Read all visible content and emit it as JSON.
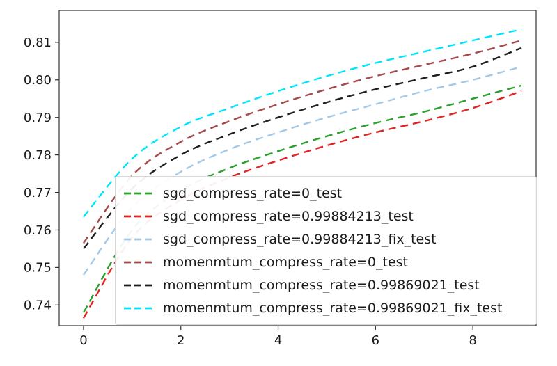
{
  "figure": {
    "background": "#ffffff",
    "text_color": "#1a1a1a"
  },
  "chart_data": {
    "type": "line",
    "title": "",
    "xlabel": "",
    "ylabel": "",
    "grid": false,
    "legend_position": "lower-left-inside",
    "x": [
      0,
      1,
      2,
      3,
      4,
      5,
      6,
      7,
      8,
      9
    ],
    "xlim": [
      -0.5,
      9.3
    ],
    "ylim": [
      0.7345,
      0.8185
    ],
    "xticks": [
      0,
      2,
      4,
      6,
      8
    ],
    "xtick_labels": [
      "0",
      "2",
      "4",
      "6",
      "8"
    ],
    "yticks": [
      0.74,
      0.75,
      0.76,
      0.77,
      0.78,
      0.79,
      0.8,
      0.81
    ],
    "ytick_labels": [
      "0.74",
      "0.75",
      "0.76",
      "0.77",
      "0.78",
      "0.79",
      "0.80",
      "0.81"
    ],
    "series": [
      {
        "name": "sgd_compress_rate=0_test",
        "color": "#2ca02c",
        "linestyle": "dashed",
        "values": [
          0.738,
          0.76,
          0.7705,
          0.7765,
          0.781,
          0.785,
          0.7885,
          0.7915,
          0.795,
          0.7985
        ]
      },
      {
        "name": "sgd_compress_rate=0.99884213_test",
        "color": "#e02424",
        "linestyle": "dashed",
        "values": [
          0.7365,
          0.758,
          0.768,
          0.774,
          0.7785,
          0.7825,
          0.786,
          0.789,
          0.7925,
          0.797
        ]
      },
      {
        "name": "sgd_compress_rate=0.99884213_fix_test",
        "color": "#a3c9e8",
        "linestyle": "dashed",
        "values": [
          0.748,
          0.766,
          0.7755,
          0.7815,
          0.786,
          0.79,
          0.7935,
          0.797,
          0.8,
          0.8035
        ]
      },
      {
        "name": "momenmtum_compress_rate=0_test",
        "color": "#a54a4a",
        "linestyle": "dashed",
        "values": [
          0.7565,
          0.7745,
          0.7835,
          0.789,
          0.7935,
          0.7975,
          0.801,
          0.804,
          0.807,
          0.8105
        ]
      },
      {
        "name": "momenmtum_compress_rate=0.99869021_test",
        "color": "#1f1f1f",
        "linestyle": "dashed",
        "values": [
          0.755,
          0.771,
          0.78,
          0.7855,
          0.79,
          0.794,
          0.7975,
          0.8005,
          0.8035,
          0.8085
        ]
      },
      {
        "name": "momenmtum_compress_rate=0.99869021_fix_test",
        "color": "#00e5ff",
        "linestyle": "dashed",
        "values": [
          0.7635,
          0.779,
          0.7875,
          0.7925,
          0.797,
          0.801,
          0.8045,
          0.8075,
          0.8105,
          0.8135
        ]
      }
    ]
  }
}
